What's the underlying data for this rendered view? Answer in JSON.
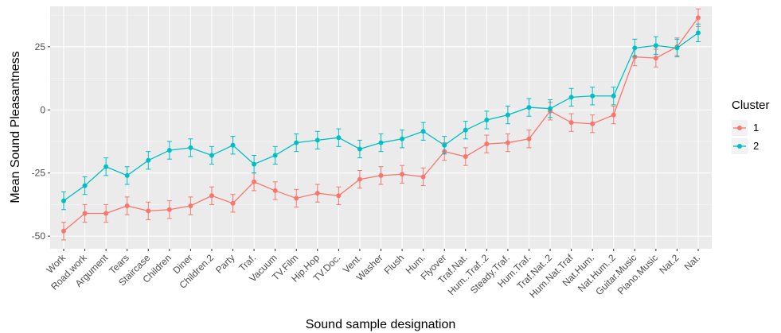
{
  "chart_data": {
    "type": "line",
    "xlabel": "Sound sample designation",
    "ylabel": "Mean Sound Pleasantness",
    "ylim": [
      -55,
      41
    ],
    "yticks": [
      -50,
      -25,
      0,
      25
    ],
    "ytick_labels": [
      "-50",
      "-25",
      "0",
      "25"
    ],
    "grid": true,
    "legend_title": "Cluster",
    "legend_position": "right",
    "categories": [
      "Work",
      "Road.work",
      "Argument",
      "Tears",
      "Staircase",
      "Children",
      "Diner",
      "Children.2",
      "Party",
      "Traf.",
      "Vacuum",
      "TV.Film",
      "Hip.Hop",
      "TV.Doc.",
      "Vent.",
      "Washer",
      "Flush",
      "Hum.",
      "Flyover",
      "Traf.Nat.",
      "Hum..Traf..2",
      "Steady.Traf.",
      "Hum.Traf.",
      "Traf.Nat..2",
      "Hum.Nat.Traf",
      "Nat.Hum.",
      "Nat.Hum..2",
      "Guitar.Music",
      "Piano.Music",
      "Nat.2",
      "Nat."
    ],
    "series": [
      {
        "name": "1",
        "color": "#F8766D",
        "values": [
          -48,
          -41,
          -41,
          -38,
          -40,
          -39.5,
          -38,
          -34,
          -37,
          -28.5,
          -32,
          -35,
          -33,
          -34,
          -27.5,
          -26,
          -25.5,
          -26.5,
          -16.5,
          -18.5,
          -13.5,
          -13,
          -11.5,
          -0.5,
          -5,
          -5.5,
          -2,
          21,
          20.5,
          25,
          36.5
        ],
        "error": [
          3.5,
          3.5,
          3.5,
          3.5,
          3.5,
          3.5,
          3.5,
          3.5,
          3.5,
          3.5,
          3.5,
          3.5,
          3.5,
          3.5,
          3.5,
          3.5,
          3.5,
          3.5,
          3.5,
          3.5,
          3.5,
          3.5,
          3.5,
          3.5,
          3.5,
          3.5,
          3.5,
          3.5,
          3.5,
          3.5,
          3.5
        ]
      },
      {
        "name": "2",
        "color": "#00BFC4",
        "values": [
          -36,
          -30,
          -22.5,
          -26,
          -20,
          -16,
          -15,
          -18,
          -14,
          -21.5,
          -18,
          -13,
          -12,
          -11,
          -15.5,
          -13,
          -11.5,
          -8.5,
          -14,
          -8,
          -4,
          -2,
          1,
          0.5,
          5,
          5.5,
          5.5,
          24.5,
          25.5,
          24.5,
          30.5
        ],
        "error": [
          3.5,
          3.5,
          3.5,
          3.5,
          3.5,
          3.5,
          3.5,
          3.5,
          3.5,
          3.5,
          3.5,
          3.5,
          3.5,
          3.5,
          3.5,
          3.5,
          3.5,
          3.5,
          3.5,
          3.5,
          3.5,
          3.5,
          3.5,
          3.5,
          3.5,
          3.5,
          3.5,
          3.5,
          3.5,
          3.5,
          3.5
        ]
      }
    ]
  }
}
